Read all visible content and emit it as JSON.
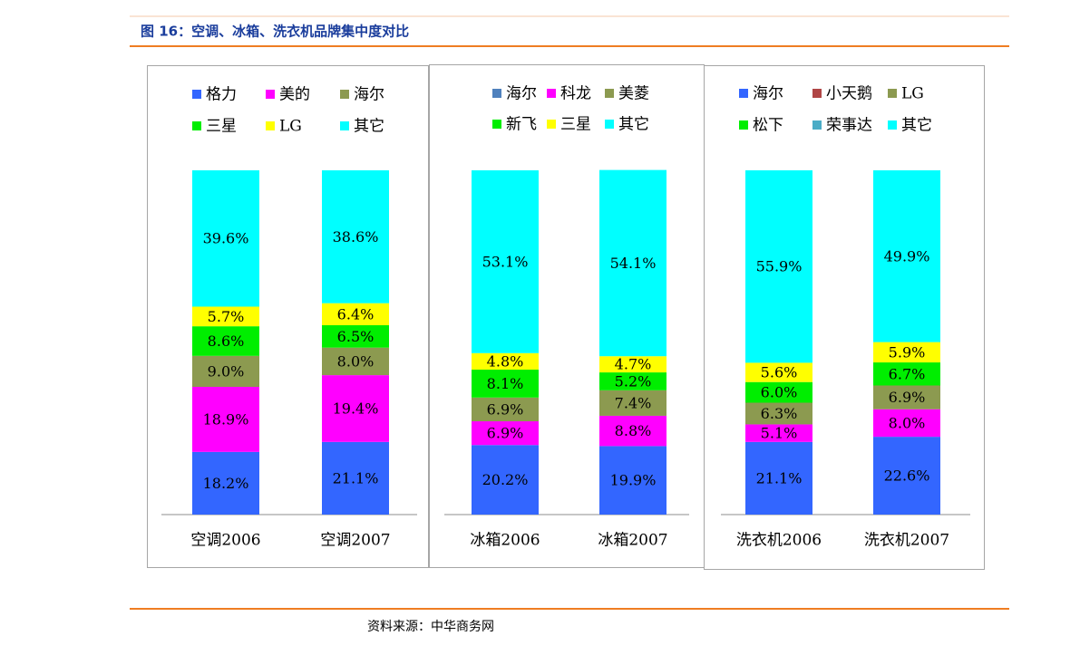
{
  "title": "图 16：空调、冰箱、洗衣机品牌集中度对比",
  "source": "资料来源：中华商务网",
  "chart_data": [
    {
      "type": "bar",
      "stacked": true,
      "ylim": [
        0,
        100
      ],
      "categories": [
        "空调2006",
        "空调2007"
      ],
      "series": [
        {
          "name": "格力",
          "color": "#3366ff",
          "values": [
            18.2,
            21.1
          ],
          "value_labels": [
            "18.2%",
            "21.1%"
          ]
        },
        {
          "name": "美的",
          "color": "#ff00ff",
          "values": [
            18.9,
            19.4
          ],
          "value_labels": [
            "18.9%",
            "19.4%"
          ]
        },
        {
          "name": "海尔",
          "color": "#8c9a50",
          "values": [
            9.0,
            8.0
          ],
          "value_labels": [
            "9.0%",
            "8.0%"
          ]
        },
        {
          "name": "三星",
          "color": "#00ee00",
          "values": [
            8.6,
            6.5
          ],
          "value_labels": [
            "8.6%",
            "6.5%"
          ]
        },
        {
          "name": "LG",
          "color": "#ffff00",
          "values": [
            5.7,
            6.4
          ],
          "value_labels": [
            "5.7%",
            "6.4%"
          ]
        },
        {
          "name": "其它",
          "color": "#00ffff",
          "values": [
            39.6,
            38.6
          ],
          "value_labels": [
            "39.6%",
            "38.6%"
          ]
        }
      ]
    },
    {
      "type": "bar",
      "stacked": true,
      "ylim": [
        0,
        100
      ],
      "categories": [
        "冰箱2006",
        "冰箱2007"
      ],
      "series": [
        {
          "name": "海尔",
          "color": "#3366ff",
          "marker_color": "#4f81bd",
          "values": [
            20.2,
            19.9
          ],
          "value_labels": [
            "20.2%",
            "19.9%"
          ]
        },
        {
          "name": "科龙",
          "color": "#ff00ff",
          "values": [
            6.9,
            8.8
          ],
          "value_labels": [
            "6.9%",
            "8.8%"
          ]
        },
        {
          "name": "美菱",
          "color": "#8c9a50",
          "values": [
            6.9,
            7.4
          ],
          "value_labels": [
            "6.9%",
            "7.4%"
          ]
        },
        {
          "name": "新飞",
          "color": "#00ee00",
          "values": [
            8.1,
            5.2
          ],
          "value_labels": [
            "8.1%",
            "5.2%"
          ]
        },
        {
          "name": "三星",
          "color": "#ffff00",
          "values": [
            4.8,
            4.7
          ],
          "value_labels": [
            "4.8%",
            "4.7%"
          ]
        },
        {
          "name": "其它",
          "color": "#00ffff",
          "values": [
            53.1,
            54.1
          ],
          "value_labels": [
            "53.1%",
            "54.1%"
          ]
        }
      ]
    },
    {
      "type": "bar",
      "stacked": true,
      "ylim": [
        0,
        100
      ],
      "categories": [
        "洗衣机2006",
        "洗衣机2007"
      ],
      "series": [
        {
          "name": "海尔",
          "color": "#3366ff",
          "values": [
            21.1,
            22.6
          ],
          "value_labels": [
            "21.1%",
            "22.6%"
          ]
        },
        {
          "name": "小天鹅",
          "color": "#ff00ff",
          "marker_color": "#b04545",
          "values": [
            5.1,
            8.0
          ],
          "value_labels": [
            "5.1%",
            "8.0%"
          ]
        },
        {
          "name": "LG",
          "color": "#8c9a50",
          "values": [
            6.3,
            6.9
          ],
          "value_labels": [
            "6.3%",
            "6.9%"
          ]
        },
        {
          "name": "松下",
          "color": "#00ee00",
          "values": [
            6.0,
            6.7
          ],
          "value_labels": [
            "6.0%",
            "6.7%"
          ]
        },
        {
          "name": "荣事达",
          "color": "#ffff00",
          "marker_color": "#4bacc6",
          "values": [
            5.6,
            5.9
          ],
          "value_labels": [
            "5.6%",
            "5.9%"
          ]
        },
        {
          "name": "其它",
          "color": "#00ffff",
          "values": [
            55.9,
            49.9
          ],
          "value_labels": [
            "55.9%",
            "49.9%"
          ]
        }
      ]
    }
  ]
}
